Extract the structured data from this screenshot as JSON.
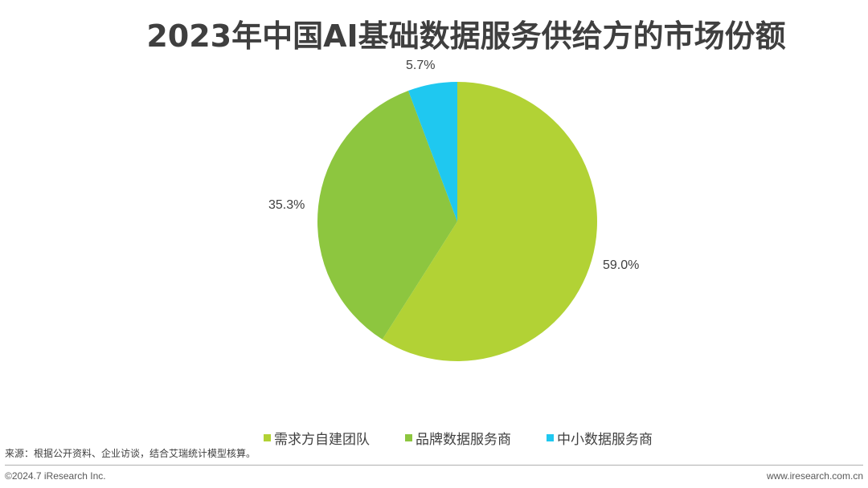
{
  "title": "2023年中国AI基础数据服务供给方的市场份额",
  "chart_data": {
    "type": "pie",
    "title": "2023年中国AI基础数据服务供给方的市场份额",
    "categories": [
      "需求方自建团队",
      "品牌数据服务商",
      "中小数据服务商"
    ],
    "values": [
      59.0,
      35.3,
      5.7
    ],
    "labels": [
      "59.0%",
      "35.3%",
      "5.7%"
    ],
    "colors": [
      "#B2D235",
      "#8DC63F",
      "#1FC8F0"
    ],
    "legend_position": "bottom"
  },
  "source": "来源：根据公开资料、企业访谈，结合艾瑞统计模型核算。",
  "footer": {
    "copyright": "©2024.7 iResearch Inc.",
    "website": "www.iresearch.com.cn"
  }
}
